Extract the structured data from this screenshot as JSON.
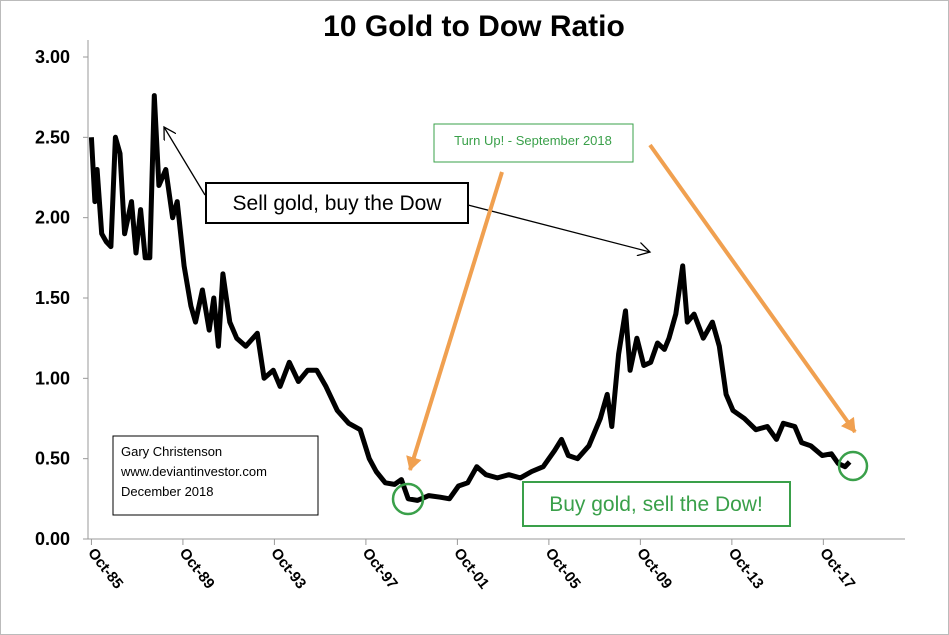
{
  "chart_data": {
    "type": "line",
    "title": "10 Gold to Dow Ratio",
    "annotations": [
      "Sell gold, buy the Dow",
      "Turn Up! - September 2018",
      "Buy gold, sell the Dow!"
    ],
    "info": [
      "Gary Christenson",
      "www.deviantinvestor.com",
      "December 2018"
    ],
    "color": "#000000",
    "xlim": [
      1985.6,
      2021.32
    ],
    "ylim": [
      0,
      3
    ],
    "xticks": [
      {
        "value": 1985.75,
        "label": "Oct-85"
      },
      {
        "value": 1989.75,
        "label": "Oct-89"
      },
      {
        "value": 1993.75,
        "label": "Oct-93"
      },
      {
        "value": 1997.75,
        "label": "Oct-97"
      },
      {
        "value": 2001.75,
        "label": "Oct-01"
      },
      {
        "value": 2005.75,
        "label": "Oct-05"
      },
      {
        "value": 2009.75,
        "label": "Oct-09"
      },
      {
        "value": 2013.75,
        "label": "Oct-13"
      },
      {
        "value": 2017.75,
        "label": "Oct-17"
      }
    ],
    "yticks": [
      {
        "value": 0,
        "label": "0.00"
      },
      {
        "value": 0.5,
        "label": "0.50"
      },
      {
        "value": 1,
        "label": "1.00"
      },
      {
        "value": 1.5,
        "label": "1.50"
      },
      {
        "value": 2,
        "label": "2.00"
      },
      {
        "value": 2.5,
        "label": "2.50"
      },
      {
        "value": 3,
        "label": "3.00"
      }
    ],
    "x": [
      1985.75,
      1985.9,
      1986.0,
      1986.2,
      1986.4,
      1986.6,
      1986.8,
      1987.0,
      1987.2,
      1987.5,
      1987.7,
      1987.9,
      1988.1,
      1988.3,
      1988.5,
      1988.7,
      1989.0,
      1989.3,
      1989.5,
      1989.8,
      1990.1,
      1990.3,
      1990.6,
      1990.9,
      1991.1,
      1991.3,
      1991.5,
      1991.8,
      1992.1,
      1992.5,
      1993.0,
      1993.3,
      1993.7,
      1994.0,
      1994.4,
      1994.8,
      1995.2,
      1995.6,
      1996.0,
      1996.5,
      1997.0,
      1997.5,
      1997.9,
      1998.2,
      1998.6,
      1999.0,
      1999.3,
      1999.6,
      2000.0,
      2000.5,
      2001.0,
      2001.4,
      2001.8,
      2002.2,
      2002.6,
      2003.0,
      2003.5,
      2004.0,
      2004.5,
      2005.0,
      2005.5,
      2006.0,
      2006.3,
      2006.6,
      2007.0,
      2007.5,
      2008.0,
      2008.3,
      2008.5,
      2008.8,
      2009.1,
      2009.3,
      2009.6,
      2009.9,
      2010.2,
      2010.5,
      2010.8,
      2011.0,
      2011.3,
      2011.6,
      2011.8,
      2012.1,
      2012.5,
      2012.9,
      2013.2,
      2013.5,
      2013.8,
      2014.3,
      2014.8,
      2015.3,
      2015.7,
      2016.0,
      2016.5,
      2016.8,
      2017.2,
      2017.7,
      2018.1,
      2018.4,
      2018.7,
      2018.9
    ],
    "values": [
      2.5,
      2.1,
      2.3,
      1.9,
      1.85,
      1.82,
      2.5,
      2.4,
      1.9,
      2.1,
      1.78,
      2.05,
      1.75,
      1.75,
      2.76,
      2.2,
      2.3,
      2.0,
      2.1,
      1.7,
      1.45,
      1.35,
      1.55,
      1.3,
      1.5,
      1.2,
      1.65,
      1.35,
      1.25,
      1.2,
      1.28,
      1.0,
      1.05,
      0.95,
      1.1,
      0.98,
      1.05,
      1.05,
      0.95,
      0.8,
      0.72,
      0.68,
      0.5,
      0.42,
      0.35,
      0.34,
      0.37,
      0.25,
      0.24,
      0.27,
      0.26,
      0.25,
      0.33,
      0.35,
      0.45,
      0.4,
      0.38,
      0.4,
      0.38,
      0.42,
      0.45,
      0.55,
      0.62,
      0.52,
      0.5,
      0.58,
      0.75,
      0.9,
      0.7,
      1.15,
      1.42,
      1.05,
      1.25,
      1.08,
      1.1,
      1.22,
      1.18,
      1.25,
      1.4,
      1.7,
      1.35,
      1.4,
      1.25,
      1.35,
      1.2,
      0.9,
      0.8,
      0.75,
      0.68,
      0.7,
      0.62,
      0.72,
      0.7,
      0.6,
      0.58,
      0.52,
      0.53,
      0.47,
      0.45,
      0.48
    ]
  }
}
